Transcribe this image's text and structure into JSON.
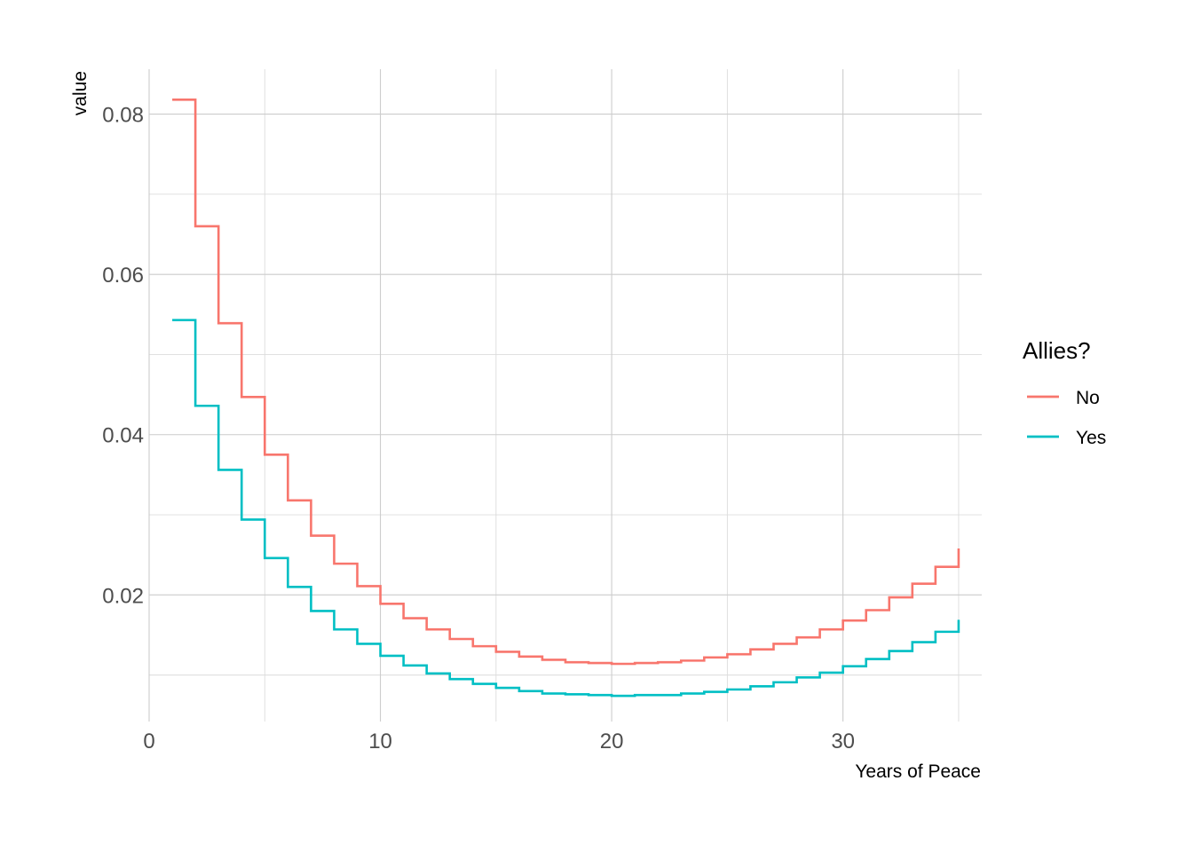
{
  "chart_data": {
    "type": "line",
    "step": true,
    "title": "",
    "xlabel": "Years of Peace",
    "ylabel": "value",
    "xlim": [
      0,
      36
    ],
    "ylim": [
      0.0042,
      0.0856
    ],
    "x_ticks": [
      0,
      10,
      20,
      30
    ],
    "x_tick_labels": [
      "0",
      "10",
      "20",
      "30"
    ],
    "x_minor": [
      5,
      15,
      25,
      35
    ],
    "y_ticks": [
      0.02,
      0.04,
      0.06,
      0.08
    ],
    "y_tick_labels": [
      "0.02",
      "0.04",
      "0.06",
      "0.08"
    ],
    "y_minor": [
      0.01,
      0.03,
      0.05,
      0.07
    ],
    "grid": true,
    "legend": {
      "title": "Allies?",
      "position": "right"
    },
    "x": [
      1,
      2,
      3,
      4,
      5,
      6,
      7,
      8,
      9,
      10,
      11,
      12,
      13,
      14,
      15,
      16,
      17,
      18,
      19,
      20,
      21,
      22,
      23,
      24,
      25,
      26,
      27,
      28,
      29,
      30,
      31,
      32,
      33,
      34,
      35
    ],
    "series": [
      {
        "name": "No",
        "color": "#F8766D",
        "values": [
          0.0818,
          0.066,
          0.0539,
          0.0447,
          0.0375,
          0.0318,
          0.0274,
          0.0239,
          0.0211,
          0.0189,
          0.0171,
          0.0157,
          0.0145,
          0.0136,
          0.0129,
          0.0123,
          0.0119,
          0.0116,
          0.0115,
          0.0114,
          0.0115,
          0.0116,
          0.0118,
          0.0122,
          0.0126,
          0.0132,
          0.0139,
          0.0147,
          0.0157,
          0.0168,
          0.0181,
          0.0197,
          0.0214,
          0.0235,
          0.0258
        ]
      },
      {
        "name": "Yes",
        "color": "#00BFC4",
        "values": [
          0.0543,
          0.0436,
          0.0356,
          0.0294,
          0.0246,
          0.021,
          0.018,
          0.0157,
          0.0139,
          0.0124,
          0.0112,
          0.0102,
          0.0095,
          0.0089,
          0.0084,
          0.008,
          0.0077,
          0.0076,
          0.0075,
          0.0074,
          0.0075,
          0.0075,
          0.0077,
          0.0079,
          0.0082,
          0.0086,
          0.0091,
          0.0097,
          0.0103,
          0.0111,
          0.012,
          0.013,
          0.0141,
          0.0154,
          0.0169
        ]
      }
    ]
  }
}
